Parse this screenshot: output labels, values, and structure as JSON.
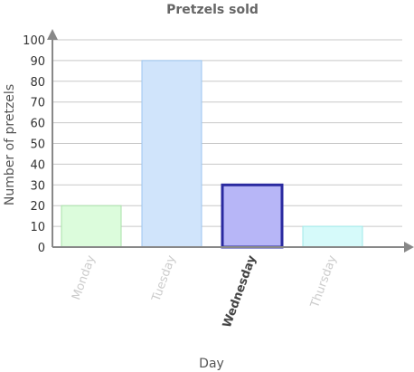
{
  "chart_data": {
    "type": "bar",
    "title": "Pretzels sold",
    "xlabel": "Day",
    "ylabel": "Number of pretzels",
    "categories": [
      "Monday",
      "Tuesday",
      "Wednesday",
      "Thursday"
    ],
    "values": [
      20,
      90,
      30,
      10
    ],
    "ylim": [
      0,
      100
    ],
    "yticks": [
      "0",
      "10",
      "20",
      "30",
      "40",
      "50",
      "60",
      "70",
      "80",
      "90",
      "100"
    ],
    "grid": true,
    "selected_category": "Wednesday",
    "colors": {
      "bar_fills": [
        "#dcfcdc",
        "#d0e4fb",
        "#b7b6f7",
        "#d6fafa"
      ],
      "bar_strokes": [
        "#a8e0a8",
        "#9cc6f0",
        "#2a2aa0",
        "#9fe8e8"
      ],
      "axis": "#888888",
      "grid": "#c8c8c8"
    }
  }
}
